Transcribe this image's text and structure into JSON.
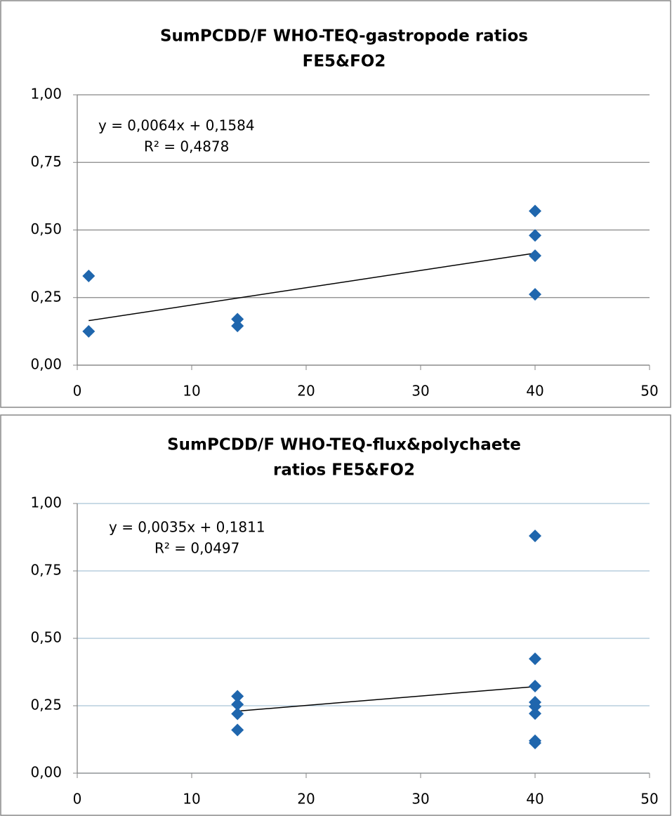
{
  "chart_data": [
    {
      "type": "scatter",
      "title": [
        "SumPCDD/F WHO-TEQ-gastropode ratios",
        "FE5&FO2"
      ],
      "series": [
        {
          "color": "#1f66ad",
          "x": [
            1,
            1,
            14,
            14,
            40,
            40,
            40,
            40
          ],
          "values": [
            0.33,
            0.125,
            0.17,
            0.145,
            0.57,
            0.48,
            0.405,
            0.262
          ]
        }
      ],
      "trendline": {
        "slope": 0.0064,
        "intercept": 0.1584,
        "equation": "y = 0,0064x + 0,1584",
        "r2": 0.4878,
        "r2_label": "R² = 0,4878"
      },
      "xlim": [
        0,
        50
      ],
      "xticks": [
        0,
        10,
        20,
        30,
        40,
        50
      ],
      "ylim": [
        0,
        1
      ],
      "yticks": [
        {
          "value": 0,
          "label": "0,00"
        },
        {
          "value": 0.25,
          "label": "0,25"
        },
        {
          "value": 0.5,
          "label": "0,50"
        },
        {
          "value": 0.75,
          "label": "0,75"
        },
        {
          "value": 1,
          "label": "1,00"
        }
      ],
      "grid": true,
      "grid_color": "#868686"
    },
    {
      "type": "scatter",
      "title": [
        "SumPCDD/F WHO-TEQ-flux&polychaete",
        "ratios FE5&FO2"
      ],
      "series": [
        {
          "color": "#1f66ad",
          "x": [
            14,
            14,
            14,
            14,
            40,
            40,
            40,
            40,
            40,
            40,
            40,
            40
          ],
          "values": [
            0.285,
            0.255,
            0.22,
            0.16,
            0.88,
            0.424,
            0.323,
            0.263,
            0.247,
            0.221,
            0.12,
            0.112
          ]
        }
      ],
      "trendline": {
        "slope": 0.0035,
        "intercept": 0.1811,
        "equation": "y = 0,0035x + 0,1811",
        "r2": 0.0497,
        "r2_label": "R² = 0,0497"
      },
      "xlim": [
        0,
        50
      ],
      "xticks": [
        0,
        10,
        20,
        30,
        40,
        50
      ],
      "ylim": [
        0,
        1
      ],
      "yticks": [
        {
          "value": 0,
          "label": "0,00"
        },
        {
          "value": 0.25,
          "label": "0,25"
        },
        {
          "value": 0.5,
          "label": "0,50"
        },
        {
          "value": 0.75,
          "label": "0,75"
        },
        {
          "value": 1,
          "label": "1,00"
        }
      ],
      "grid": true,
      "grid_color": "#a9c4d6"
    }
  ]
}
